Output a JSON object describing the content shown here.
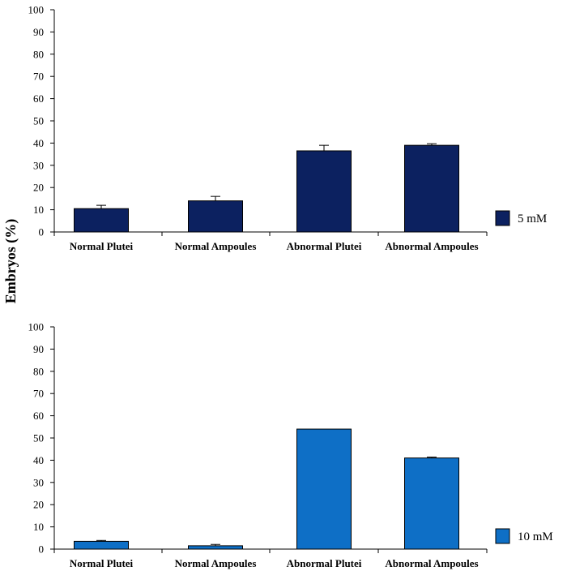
{
  "chart_data": {
    "ylabel": "Embryos  (%)",
    "panels": [
      {
        "type": "bar",
        "categories": [
          "Normal Plutei",
          "Normal Ampoules",
          "Abnormal Plutei",
          "Abnormal Ampoules"
        ],
        "series": [
          {
            "name": "5 mM",
            "values": [
              10.5,
              14,
              36.5,
              39
            ],
            "errors": [
              1.5,
              2,
              2.5,
              0.7
            ]
          }
        ],
        "ylim": [
          0,
          100
        ],
        "yticks": [
          0,
          10,
          20,
          30,
          40,
          50,
          60,
          70,
          80,
          90,
          100
        ],
        "color": "#0c2160",
        "grid": false,
        "legend": "right"
      },
      {
        "type": "bar",
        "categories": [
          "Normal Plutei",
          "Normal Ampoules",
          "Abnormal Plutei",
          "Abnormal Ampoules"
        ],
        "series": [
          {
            "name": "10 mM",
            "values": [
              3.5,
              1.5,
              54,
              41
            ],
            "errors": [
              0.4,
              0.6,
              0,
              0.4
            ]
          }
        ],
        "ylim": [
          0,
          100
        ],
        "yticks": [
          0,
          10,
          20,
          30,
          40,
          50,
          60,
          70,
          80,
          90,
          100
        ],
        "color": "#0e6fc6",
        "grid": false,
        "legend": "right"
      }
    ]
  }
}
